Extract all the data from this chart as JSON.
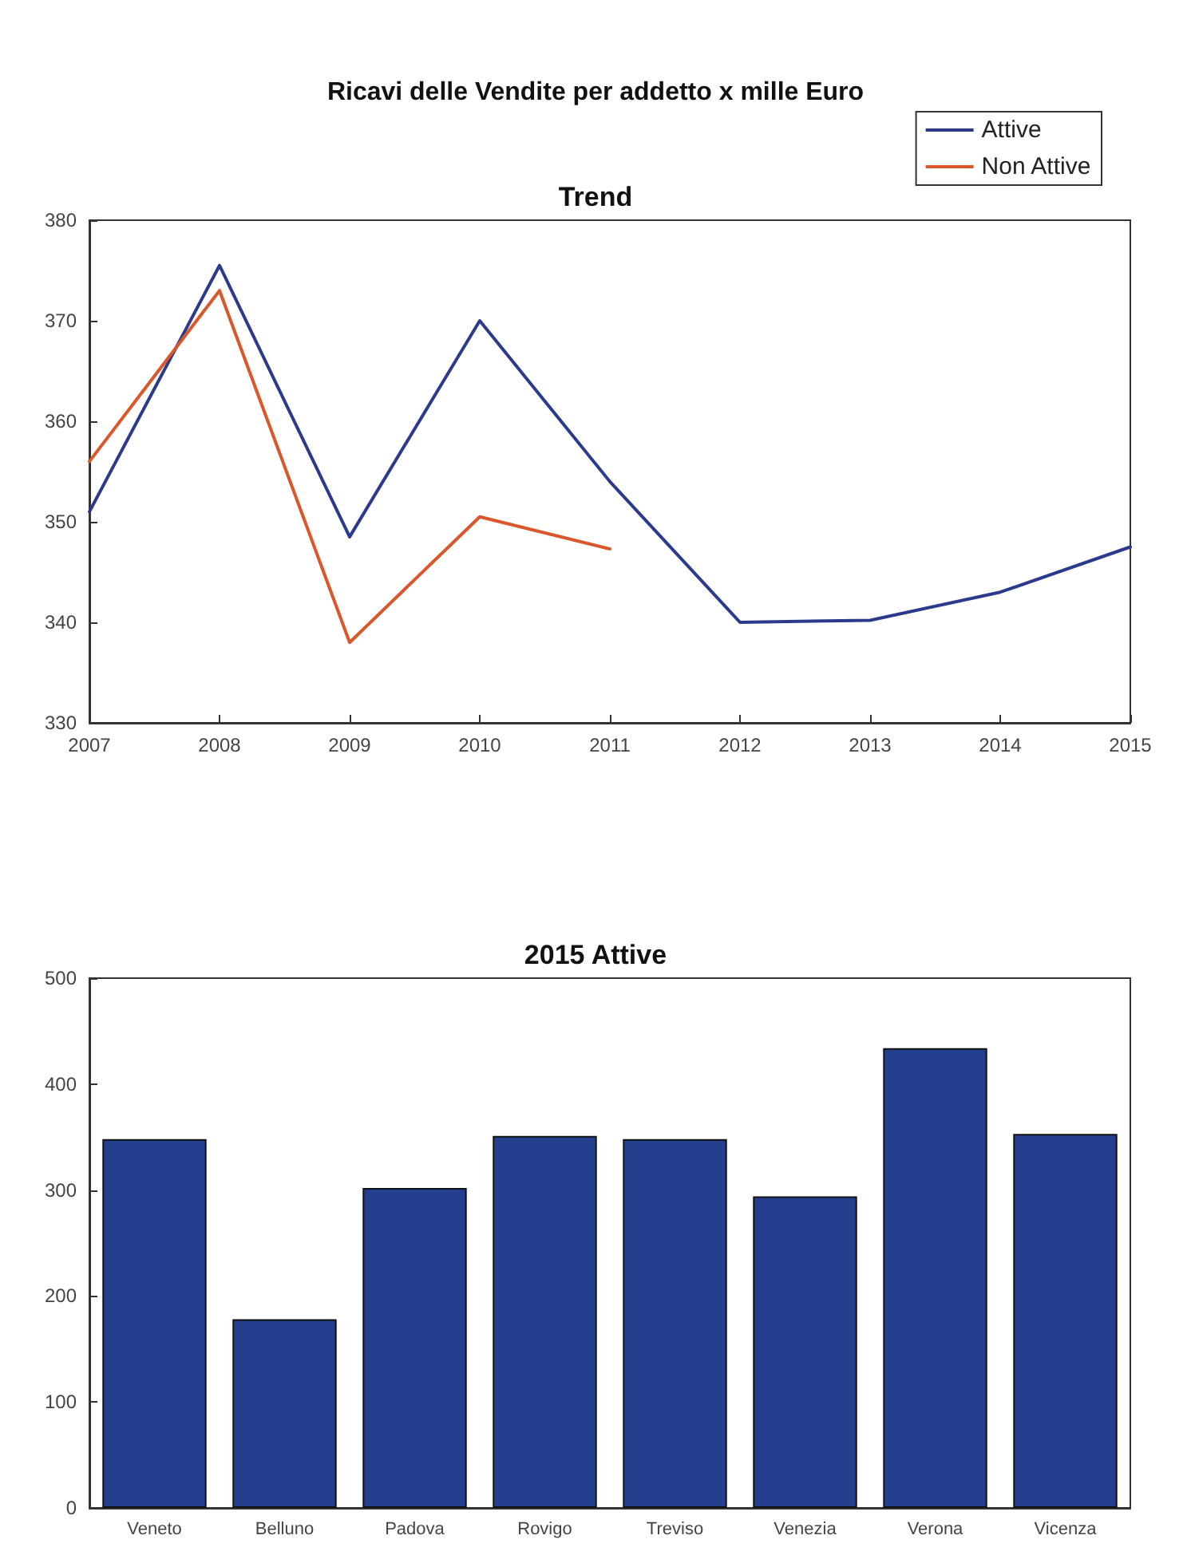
{
  "chart_data": [
    {
      "type": "line",
      "title": "Trend",
      "annotations": [
        "Ricavi delle Vendite per addetto x mille Euro"
      ],
      "x": [
        2007,
        2008,
        2009,
        2010,
        2011,
        2012,
        2013,
        2014,
        2015
      ],
      "series": [
        {
          "name": "Attive",
          "color": "#2b3a8c",
          "values": [
            351,
            375.5,
            348.5,
            370,
            354,
            340,
            340.2,
            343,
            347.5
          ]
        },
        {
          "name": "Non Attive",
          "color": "#d9572a",
          "values": [
            356,
            373,
            338,
            350.5,
            347.3,
            null,
            null,
            null,
            null
          ]
        }
      ],
      "xlim": [
        2007,
        2015
      ],
      "xticks": [
        2007,
        2008,
        2009,
        2010,
        2011,
        2012,
        2013,
        2014,
        2015
      ],
      "ylim": [
        330,
        380
      ],
      "yticks": [
        330,
        340,
        350,
        360,
        370,
        380
      ],
      "grid": false,
      "legend": "top right",
      "marker": "none",
      "line_style": "solid"
    },
    {
      "type": "bar",
      "title": "2015 Attive",
      "categories": [
        "Veneto",
        "Belluno",
        "Padova",
        "Rovigo",
        "Treviso",
        "Venezia",
        "Verona",
        "Vicenza"
      ],
      "values": [
        348,
        178,
        302,
        351,
        348,
        294,
        434,
        353
      ],
      "color": "#253f8f",
      "ylim": [
        0,
        500
      ],
      "yticks": [
        0,
        100,
        200,
        300,
        400,
        500
      ],
      "grid": false,
      "legend": false
    }
  ]
}
